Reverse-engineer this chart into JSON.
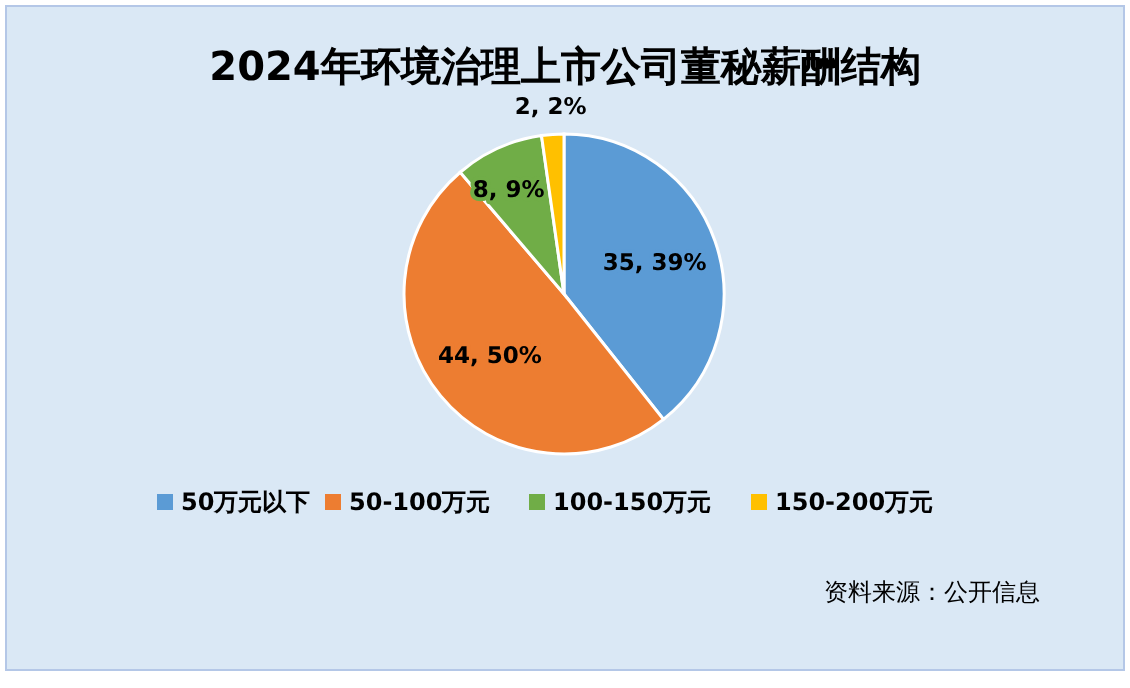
{
  "chart_data": {
    "type": "pie",
    "title": "2024年环境治理上市公司董秘薪酬结构",
    "categories": [
      "50万元以下",
      "50-100万元",
      "100-150万元",
      "150-200万元"
    ],
    "values": [
      35,
      44,
      8,
      2
    ],
    "value_labels": [
      "35, 39%",
      "44, 50%",
      "8, 9%",
      "2, 2%"
    ],
    "colors": [
      "#5b9bd5",
      "#ed7d31",
      "#70ad47",
      "#ffc000"
    ],
    "legend": "bottom",
    "annotations": [
      "资料来源：公开信息"
    ]
  }
}
